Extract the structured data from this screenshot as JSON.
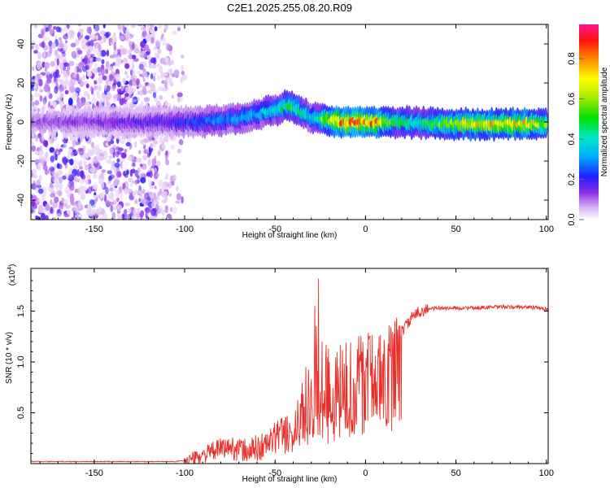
{
  "title": "C2E1.2025.255.08.20.R09",
  "chart_data": [
    {
      "type": "heatmap",
      "xlabel": "Height of straight line (km)",
      "ylabel": "Frequency (Hz)",
      "xlim": [
        -185,
        101
      ],
      "ylim": [
        -50,
        50
      ],
      "xticks": [
        "-150",
        "-100",
        "-50",
        "0",
        "50",
        "100"
      ],
      "yticks": [
        "-40",
        "-20",
        "0",
        "20",
        "40"
      ],
      "colorbar": {
        "label": "Normalized spectral amplitude",
        "range": [
          0,
          0.97
        ],
        "ticks": [
          "0.0",
          "0.2",
          "0.4",
          "0.6",
          "0.8"
        ]
      },
      "ridge_center_hz": [
        [
          -185,
          0
        ],
        [
          -150,
          0
        ],
        [
          -110,
          0
        ],
        [
          -95,
          0
        ],
        [
          -80,
          1
        ],
        [
          -70,
          2
        ],
        [
          -60,
          4
        ],
        [
          -50,
          6
        ],
        [
          -45,
          8
        ],
        [
          -40,
          8
        ],
        [
          -35,
          5
        ],
        [
          -30,
          2
        ],
        [
          -25,
          2
        ],
        [
          -20,
          1
        ],
        [
          -10,
          0
        ],
        [
          0,
          0
        ],
        [
          10,
          0
        ],
        [
          20,
          0
        ],
        [
          40,
          -1
        ],
        [
          60,
          -1
        ],
        [
          80,
          -1
        ],
        [
          101,
          -1
        ]
      ],
      "ridge_peak_amplitude": [
        [
          -185,
          0.12
        ],
        [
          -160,
          0.15
        ],
        [
          -110,
          0.2
        ],
        [
          -90,
          0.3
        ],
        [
          -70,
          0.35
        ],
        [
          -50,
          0.45
        ],
        [
          -42,
          0.55
        ],
        [
          -30,
          0.4
        ],
        [
          -15,
          0.9
        ],
        [
          -5,
          0.95
        ],
        [
          5,
          0.95
        ],
        [
          15,
          0.55
        ],
        [
          30,
          0.5
        ],
        [
          50,
          0.75
        ],
        [
          70,
          0.8
        ],
        [
          90,
          0.8
        ],
        [
          101,
          0.6
        ]
      ],
      "noise_region_km": [
        -185,
        -97
      ]
    },
    {
      "type": "line",
      "xlabel": "Height of straight line (km)",
      "ylabel": "SNR (10 * v/v)",
      "y_multiplier": "(x10",
      "y_multiplier_exp": "4",
      "xlim": [
        -185,
        101
      ],
      "ylim": [
        0,
        1.92
      ],
      "xticks": [
        "-150",
        "-100",
        "-50",
        "0",
        "50",
        "100"
      ],
      "yticks": [
        "0.5",
        "1.0",
        "1.5"
      ],
      "color": "#e8302a",
      "series": [
        {
          "name": "SNR",
          "x": [
            -185,
            -160,
            -140,
            -120,
            -105,
            -100,
            -95,
            -90,
            -85,
            -80,
            -75,
            -70,
            -65,
            -60,
            -55,
            -50,
            -45,
            -40,
            -35,
            -30,
            -27,
            -25,
            -20,
            -15,
            -10,
            -5,
            0,
            5,
            10,
            15,
            20,
            25,
            30,
            35,
            40,
            50,
            60,
            70,
            80,
            90,
            101
          ],
          "values": [
            0.02,
            0.02,
            0.02,
            0.02,
            0.02,
            0.03,
            0.05,
            0.08,
            0.12,
            0.15,
            0.16,
            0.14,
            0.12,
            0.15,
            0.18,
            0.25,
            0.35,
            0.45,
            0.55,
            0.7,
            1.1,
            0.85,
            0.75,
            0.8,
            0.85,
            0.95,
            1.0,
            1.05,
            1.1,
            1.2,
            1.3,
            1.42,
            1.5,
            1.52,
            1.53,
            1.53,
            1.53,
            1.54,
            1.54,
            1.54,
            1.52
          ]
        }
      ],
      "spikes": [
        [
          -33,
          0.95
        ],
        [
          -28,
          1.55
        ],
        [
          -26,
          1.82
        ],
        [
          -24,
          1.2
        ],
        [
          -20,
          1.0
        ],
        [
          -15,
          0.95
        ]
      ]
    }
  ]
}
